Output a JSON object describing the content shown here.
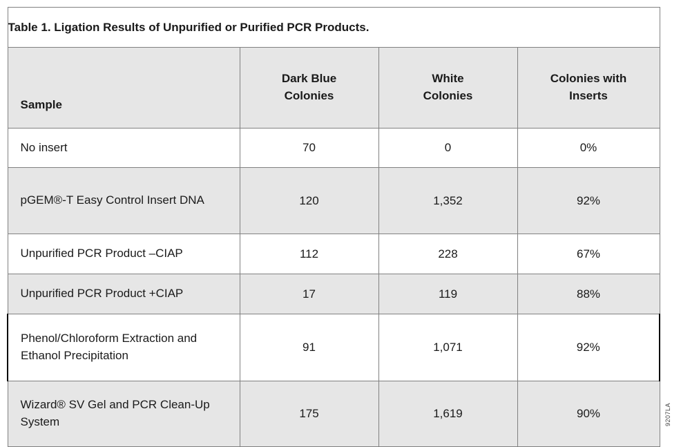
{
  "title": "Table 1. Ligation Results of Unpurified or Purified PCR Products.",
  "table": {
    "headers": {
      "sample": "Sample",
      "dark_blue": "Dark Blue\nColonies",
      "white": "White\nColonies",
      "with_inserts": "Colonies with\nInserts"
    },
    "rows": [
      {
        "sample": "No insert",
        "dark_blue": "70",
        "white": "0",
        "with_inserts": "0%"
      },
      {
        "sample": "pGEM®-T Easy Control Insert DNA",
        "dark_blue": "120",
        "white": "1,352",
        "with_inserts": "92%"
      },
      {
        "sample": "Unpurified PCR Product –CIAP",
        "dark_blue": "112",
        "white": "228",
        "with_inserts": "67%"
      },
      {
        "sample": "Unpurified PCR Product +CIAP",
        "dark_blue": "17",
        "white": "119",
        "with_inserts": "88%"
      },
      {
        "sample": "Phenol/Chloroform Extraction and Ethanol Precipitation",
        "dark_blue": "91",
        "white": "1,071",
        "with_inserts": "92%"
      },
      {
        "sample": "Wizard® SV Gel and PCR Clean-Up System",
        "dark_blue": "175",
        "white": "1,619",
        "with_inserts": "90%"
      }
    ]
  },
  "figure_code": "9207LA",
  "colors": {
    "row_shade": "#e6e6e6",
    "grid_line": "#808080",
    "heavy_line": "#000000",
    "text": "#1a1a1a",
    "background": "#ffffff"
  }
}
